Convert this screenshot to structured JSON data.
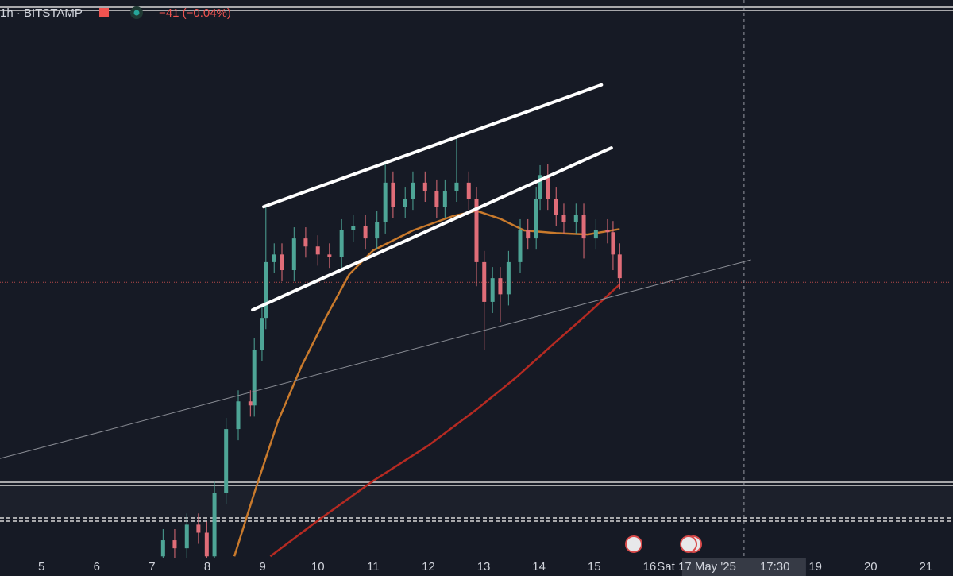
{
  "header": {
    "symbol": "1h · BITSTAMP",
    "change": "−41 (−0.04%)"
  },
  "chart_data": {
    "type": "candlestick",
    "xlim": [
      4.25,
      21.49
    ],
    "ylim": [
      95900,
      108800
    ],
    "xticks": [
      5,
      6,
      7,
      8,
      9,
      10,
      11,
      12,
      13,
      14,
      15,
      16,
      19,
      20,
      21
    ],
    "up_color": "#4ea596",
    "down_color": "#e06d78",
    "candles": {
      "x": [
        7.2,
        7.41,
        7.63,
        7.84,
        7.99,
        8.13,
        8.34,
        8.56,
        8.78,
        8.85,
        8.99,
        9.06,
        9.21,
        9.35,
        9.57,
        9.78,
        10.0,
        10.21,
        10.43,
        10.64,
        10.86,
        11.07,
        11.22,
        11.36,
        11.58,
        11.72,
        11.94,
        12.15,
        12.3,
        12.51,
        12.73,
        12.87,
        13.01,
        13.16,
        13.3,
        13.45,
        13.66,
        13.8,
        13.95,
        14.02,
        14.16,
        14.31,
        14.45,
        14.67,
        14.81,
        15.03,
        15.24,
        15.34,
        15.46
      ],
      "open": [
        96340,
        96700,
        96520,
        97050,
        96870,
        96340,
        97760,
        99190,
        99810,
        99720,
        100970,
        101680,
        102930,
        103100,
        102750,
        103460,
        103280,
        103100,
        103050,
        103640,
        103730,
        103460,
        103820,
        104710,
        104170,
        104350,
        104710,
        104530,
        104170,
        104530,
        104710,
        104350,
        102930,
        102040,
        102570,
        102210,
        102930,
        103640,
        103460,
        104350,
        104880,
        104350,
        103990,
        103820,
        103990,
        103460,
        103640,
        103600,
        103100
      ],
      "high": [
        96950,
        96950,
        97300,
        97300,
        97120,
        98010,
        99440,
        100060,
        100060,
        101220,
        101930,
        104170,
        103350,
        103350,
        103710,
        103710,
        103530,
        103350,
        103890,
        103980,
        103980,
        104070,
        105150,
        104960,
        104600,
        104960,
        104960,
        104780,
        104780,
        105770,
        104960,
        104600,
        103180,
        102820,
        102820,
        103180,
        103890,
        103890,
        104600,
        105100,
        105130,
        104600,
        104240,
        104240,
        104240,
        103890,
        103890,
        103850,
        103350
      ],
      "low": [
        96090,
        96270,
        96270,
        96620,
        96090,
        96090,
        97510,
        98940,
        99470,
        99470,
        100720,
        101430,
        102680,
        102500,
        102500,
        103030,
        102850,
        102800,
        102800,
        103390,
        103210,
        103210,
        103570,
        103920,
        103920,
        104100,
        104280,
        103920,
        103920,
        104280,
        104100,
        102390,
        100970,
        101790,
        101590,
        101960,
        102680,
        103210,
        103210,
        104100,
        104100,
        103740,
        103570,
        103570,
        103010,
        103210,
        103350,
        102750,
        102320
      ],
      "close": [
        96700,
        96520,
        97050,
        96870,
        96340,
        97760,
        99190,
        99810,
        99720,
        100970,
        101680,
        102930,
        103100,
        102750,
        103460,
        103280,
        103100,
        103050,
        103640,
        103730,
        103460,
        103820,
        104710,
        104170,
        104350,
        104710,
        104530,
        104170,
        104530,
        104710,
        104350,
        102930,
        102040,
        102570,
        102210,
        102930,
        103640,
        103460,
        104350,
        104880,
        104350,
        103990,
        103820,
        103990,
        103460,
        103640,
        103600,
        103100,
        102570
      ]
    },
    "series": [
      {
        "color": "#c97a2c",
        "x": [
          8.49,
          8.85,
          9.28,
          9.71,
          10.14,
          10.57,
          11.0,
          11.72,
          12.44,
          12.87,
          13.3,
          13.73,
          14.31,
          14.88,
          15.46
        ],
        "values": [
          96340,
          97760,
          99370,
          100610,
          101680,
          102660,
          103190,
          103640,
          103960,
          104080,
          103900,
          103640,
          103580,
          103550,
          103670
        ]
      },
      {
        "color": "#b52a22",
        "x": [
          9.14,
          10.0,
          11.0,
          12.01,
          12.87,
          13.59,
          14.31,
          14.88,
          15.46
        ],
        "values": [
          96340,
          97140,
          98030,
          98830,
          99630,
          100350,
          101150,
          101770,
          102430
        ]
      }
    ],
    "trendlines": [
      {
        "color": "#ffffff",
        "x": [
          9.02,
          15.13
        ],
        "y": [
          104170,
          106900
        ]
      },
      {
        "color": "#ffffff",
        "x": [
          8.82,
          15.31
        ],
        "y": [
          101860,
          105490
        ]
      },
      {
        "color": "#8a8d95",
        "x": [
          4.25,
          17.83
        ],
        "y": [
          98530,
          102980
        ]
      }
    ],
    "last_price": 102480,
    "crosshair_x": 17.71,
    "crosshair_date": "Sat 17 May '25",
    "crosshair_time": "17:30"
  }
}
